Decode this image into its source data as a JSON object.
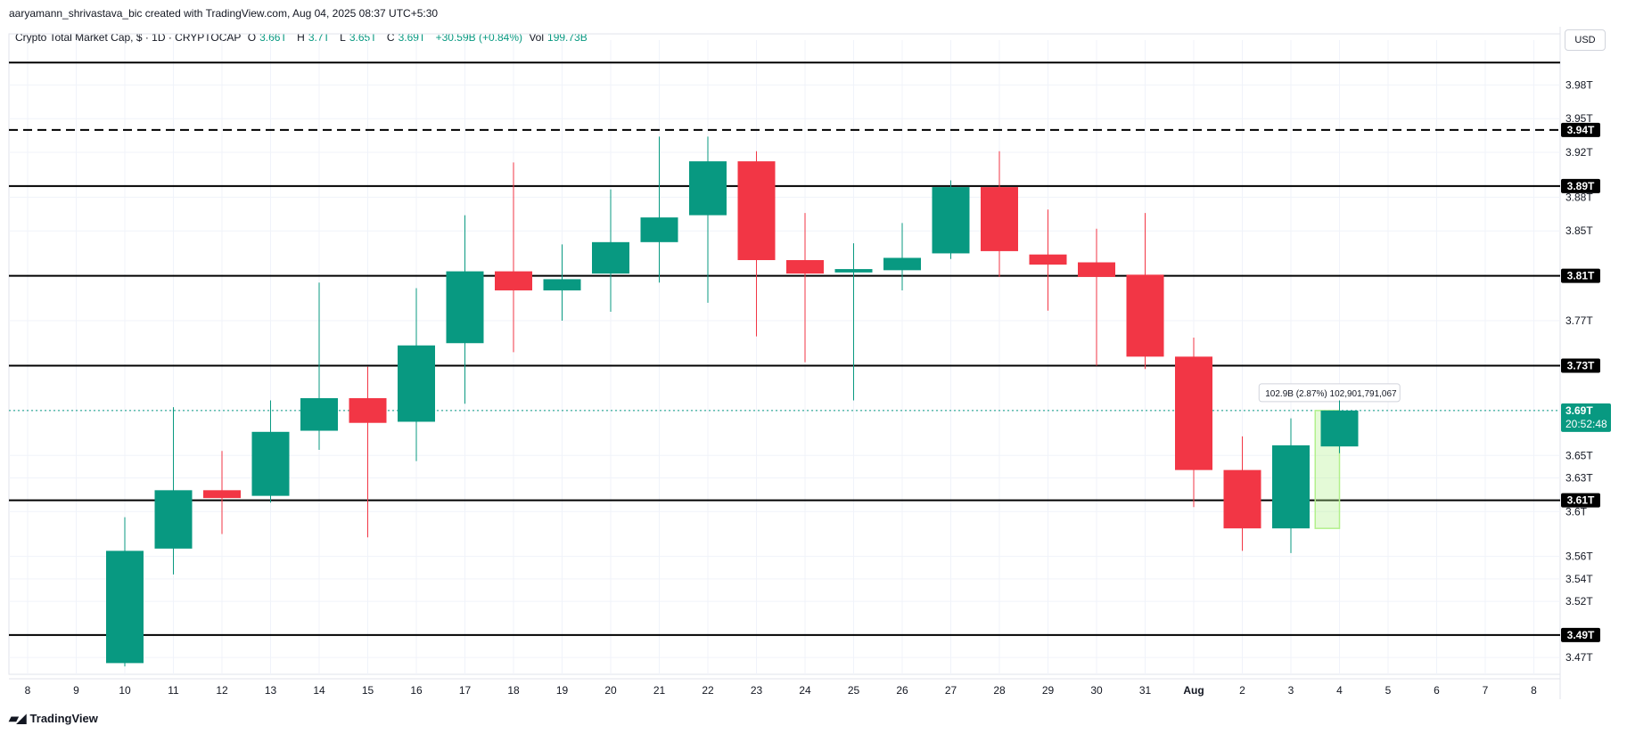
{
  "header": {
    "text": "aaryamann_shrivastava_bic created with TradingView.com, Aug 04, 2025 08:37 UTC+5:30"
  },
  "legend": {
    "symbol": "Crypto Total Market Cap, $ · 1D · CRYPTOCAP",
    "open_label": "O",
    "open": "3.66T",
    "high_label": "H",
    "high": "3.7T",
    "low_label": "L",
    "low": "3.65T",
    "close_label": "C",
    "close": "3.69T",
    "change": "+30.59B (+0.84%)",
    "vol_label": "Vol",
    "vol": "199.73B"
  },
  "currency": "USD",
  "footer": {
    "brand": "TradingView",
    "icon": "tradingview-logo-icon"
  },
  "colors": {
    "up": "#089981",
    "down": "#f23645",
    "line": "#000000",
    "grid": "#f0f3fa",
    "measure": "#b2f08c"
  },
  "chart_data": {
    "type": "candlestick",
    "title": "Crypto Total Market Cap, $ · 1D · CRYPTOCAP",
    "ylim": [
      3.455,
      4.02
    ],
    "y_ticks": [
      "3.98T",
      "3.95T",
      "3.92T",
      "3.88T",
      "3.85T",
      "3.77T",
      "3.73T",
      "3.69T",
      "3.65T",
      "3.63T",
      "3.6T",
      "3.56T",
      "3.54T",
      "3.52T",
      "3.49T",
      "3.47T"
    ],
    "y_tick_values": [
      3.98,
      3.95,
      3.92,
      3.88,
      3.85,
      3.77,
      3.73,
      3.69,
      3.65,
      3.63,
      3.6,
      3.56,
      3.54,
      3.52,
      3.49,
      3.47
    ],
    "x_labels": [
      "8",
      "9",
      "10",
      "11",
      "12",
      "13",
      "14",
      "15",
      "16",
      "17",
      "18",
      "19",
      "20",
      "21",
      "22",
      "23",
      "24",
      "25",
      "26",
      "27",
      "28",
      "29",
      "30",
      "31",
      "Aug",
      "2",
      "3",
      "4",
      "5",
      "6",
      "7",
      "8"
    ],
    "bold_x_label": "Aug",
    "candles": [
      {
        "date": "10",
        "o": 3.465,
        "h": 3.595,
        "l": 3.462,
        "c": 3.565
      },
      {
        "date": "11",
        "o": 3.567,
        "h": 3.693,
        "l": 3.544,
        "c": 3.619
      },
      {
        "date": "12",
        "o": 3.619,
        "h": 3.654,
        "l": 3.58,
        "c": 3.612
      },
      {
        "date": "13",
        "o": 3.614,
        "h": 3.699,
        "l": 3.608,
        "c": 3.671
      },
      {
        "date": "14",
        "o": 3.672,
        "h": 3.804,
        "l": 3.655,
        "c": 3.701
      },
      {
        "date": "15",
        "o": 3.701,
        "h": 3.729,
        "l": 3.577,
        "c": 3.679
      },
      {
        "date": "16",
        "o": 3.68,
        "h": 3.799,
        "l": 3.645,
        "c": 3.748
      },
      {
        "date": "17",
        "o": 3.75,
        "h": 3.864,
        "l": 3.696,
        "c": 3.814
      },
      {
        "date": "18",
        "o": 3.814,
        "h": 3.911,
        "l": 3.742,
        "c": 3.797
      },
      {
        "date": "19",
        "o": 3.797,
        "h": 3.838,
        "l": 3.77,
        "c": 3.807
      },
      {
        "date": "20",
        "o": 3.812,
        "h": 3.887,
        "l": 3.778,
        "c": 3.84
      },
      {
        "date": "21",
        "o": 3.84,
        "h": 3.934,
        "l": 3.804,
        "c": 3.862
      },
      {
        "date": "22",
        "o": 3.864,
        "h": 3.934,
        "l": 3.786,
        "c": 3.912
      },
      {
        "date": "23",
        "o": 3.912,
        "h": 3.921,
        "l": 3.756,
        "c": 3.824
      },
      {
        "date": "24",
        "o": 3.824,
        "h": 3.866,
        "l": 3.733,
        "c": 3.812
      },
      {
        "date": "25",
        "o": 3.813,
        "h": 3.839,
        "l": 3.699,
        "c": 3.816
      },
      {
        "date": "26",
        "o": 3.815,
        "h": 3.857,
        "l": 3.797,
        "c": 3.826
      },
      {
        "date": "27",
        "o": 3.83,
        "h": 3.895,
        "l": 3.825,
        "c": 3.889
      },
      {
        "date": "28",
        "o": 3.889,
        "h": 3.921,
        "l": 3.809,
        "c": 3.832
      },
      {
        "date": "29",
        "o": 3.829,
        "h": 3.869,
        "l": 3.779,
        "c": 3.82
      },
      {
        "date": "30",
        "o": 3.822,
        "h": 3.852,
        "l": 3.73,
        "c": 3.809
      },
      {
        "date": "31",
        "o": 3.811,
        "h": 3.866,
        "l": 3.727,
        "c": 3.738
      },
      {
        "date": "Aug",
        "o": 3.738,
        "h": 3.755,
        "l": 3.604,
        "c": 3.637
      },
      {
        "date": "2",
        "o": 3.637,
        "h": 3.667,
        "l": 3.565,
        "c": 3.585
      },
      {
        "date": "3",
        "o": 3.585,
        "h": 3.683,
        "l": 3.563,
        "c": 3.659
      },
      {
        "date": "4",
        "o": 3.658,
        "h": 3.699,
        "l": 3.652,
        "c": 3.69
      }
    ],
    "horizontal_lines": [
      {
        "value": 4.0,
        "style": "solid",
        "label": ""
      },
      {
        "value": 3.94,
        "style": "dashed",
        "label": "3.94T"
      },
      {
        "value": 3.89,
        "style": "solid",
        "label": "3.89T"
      },
      {
        "value": 3.81,
        "style": "solid",
        "label": "3.81T"
      },
      {
        "value": 3.73,
        "style": "solid",
        "label": "3.73T"
      },
      {
        "value": 3.61,
        "style": "solid",
        "label": "3.61T"
      },
      {
        "value": 3.49,
        "style": "solid",
        "label": "3.49T"
      }
    ],
    "last_price": {
      "value": 3.69,
      "label": "3.69T",
      "countdown": "20:52:48"
    },
    "measure": {
      "from_index": 24.5,
      "to_index": 25.0,
      "low": 3.585,
      "high": 3.69,
      "label": "102.9B (2.87%) 102,901,791,067"
    }
  }
}
